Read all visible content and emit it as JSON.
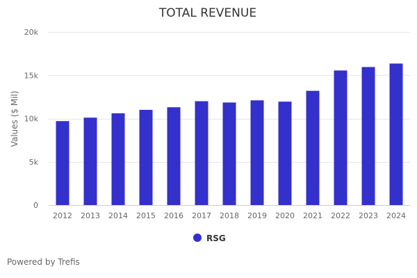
{
  "chart_data": {
    "type": "bar",
    "title": "TOTAL REVENUE",
    "ylabel": "Values ($ Mil)",
    "xlabel": "",
    "categories": [
      "2012",
      "2013",
      "2014",
      "2015",
      "2016",
      "2017",
      "2018",
      "2019",
      "2020",
      "2021",
      "2022",
      "2023",
      "2024"
    ],
    "series": [
      {
        "name": "RSG",
        "color": "#3430cc",
        "values": [
          9700,
          10100,
          10600,
          11000,
          11300,
          12000,
          11850,
          12100,
          11950,
          13200,
          15550,
          15950,
          16350
        ]
      }
    ],
    "ylim": [
      0,
      20000
    ],
    "yticks": [
      0,
      5000,
      10000,
      15000,
      20000
    ],
    "ytick_labels": [
      "0",
      "5k",
      "10k",
      "15k",
      "20k"
    ],
    "grid": true,
    "legend_position": "bottom"
  },
  "footer": {
    "text": "Powered by Trefis"
  }
}
